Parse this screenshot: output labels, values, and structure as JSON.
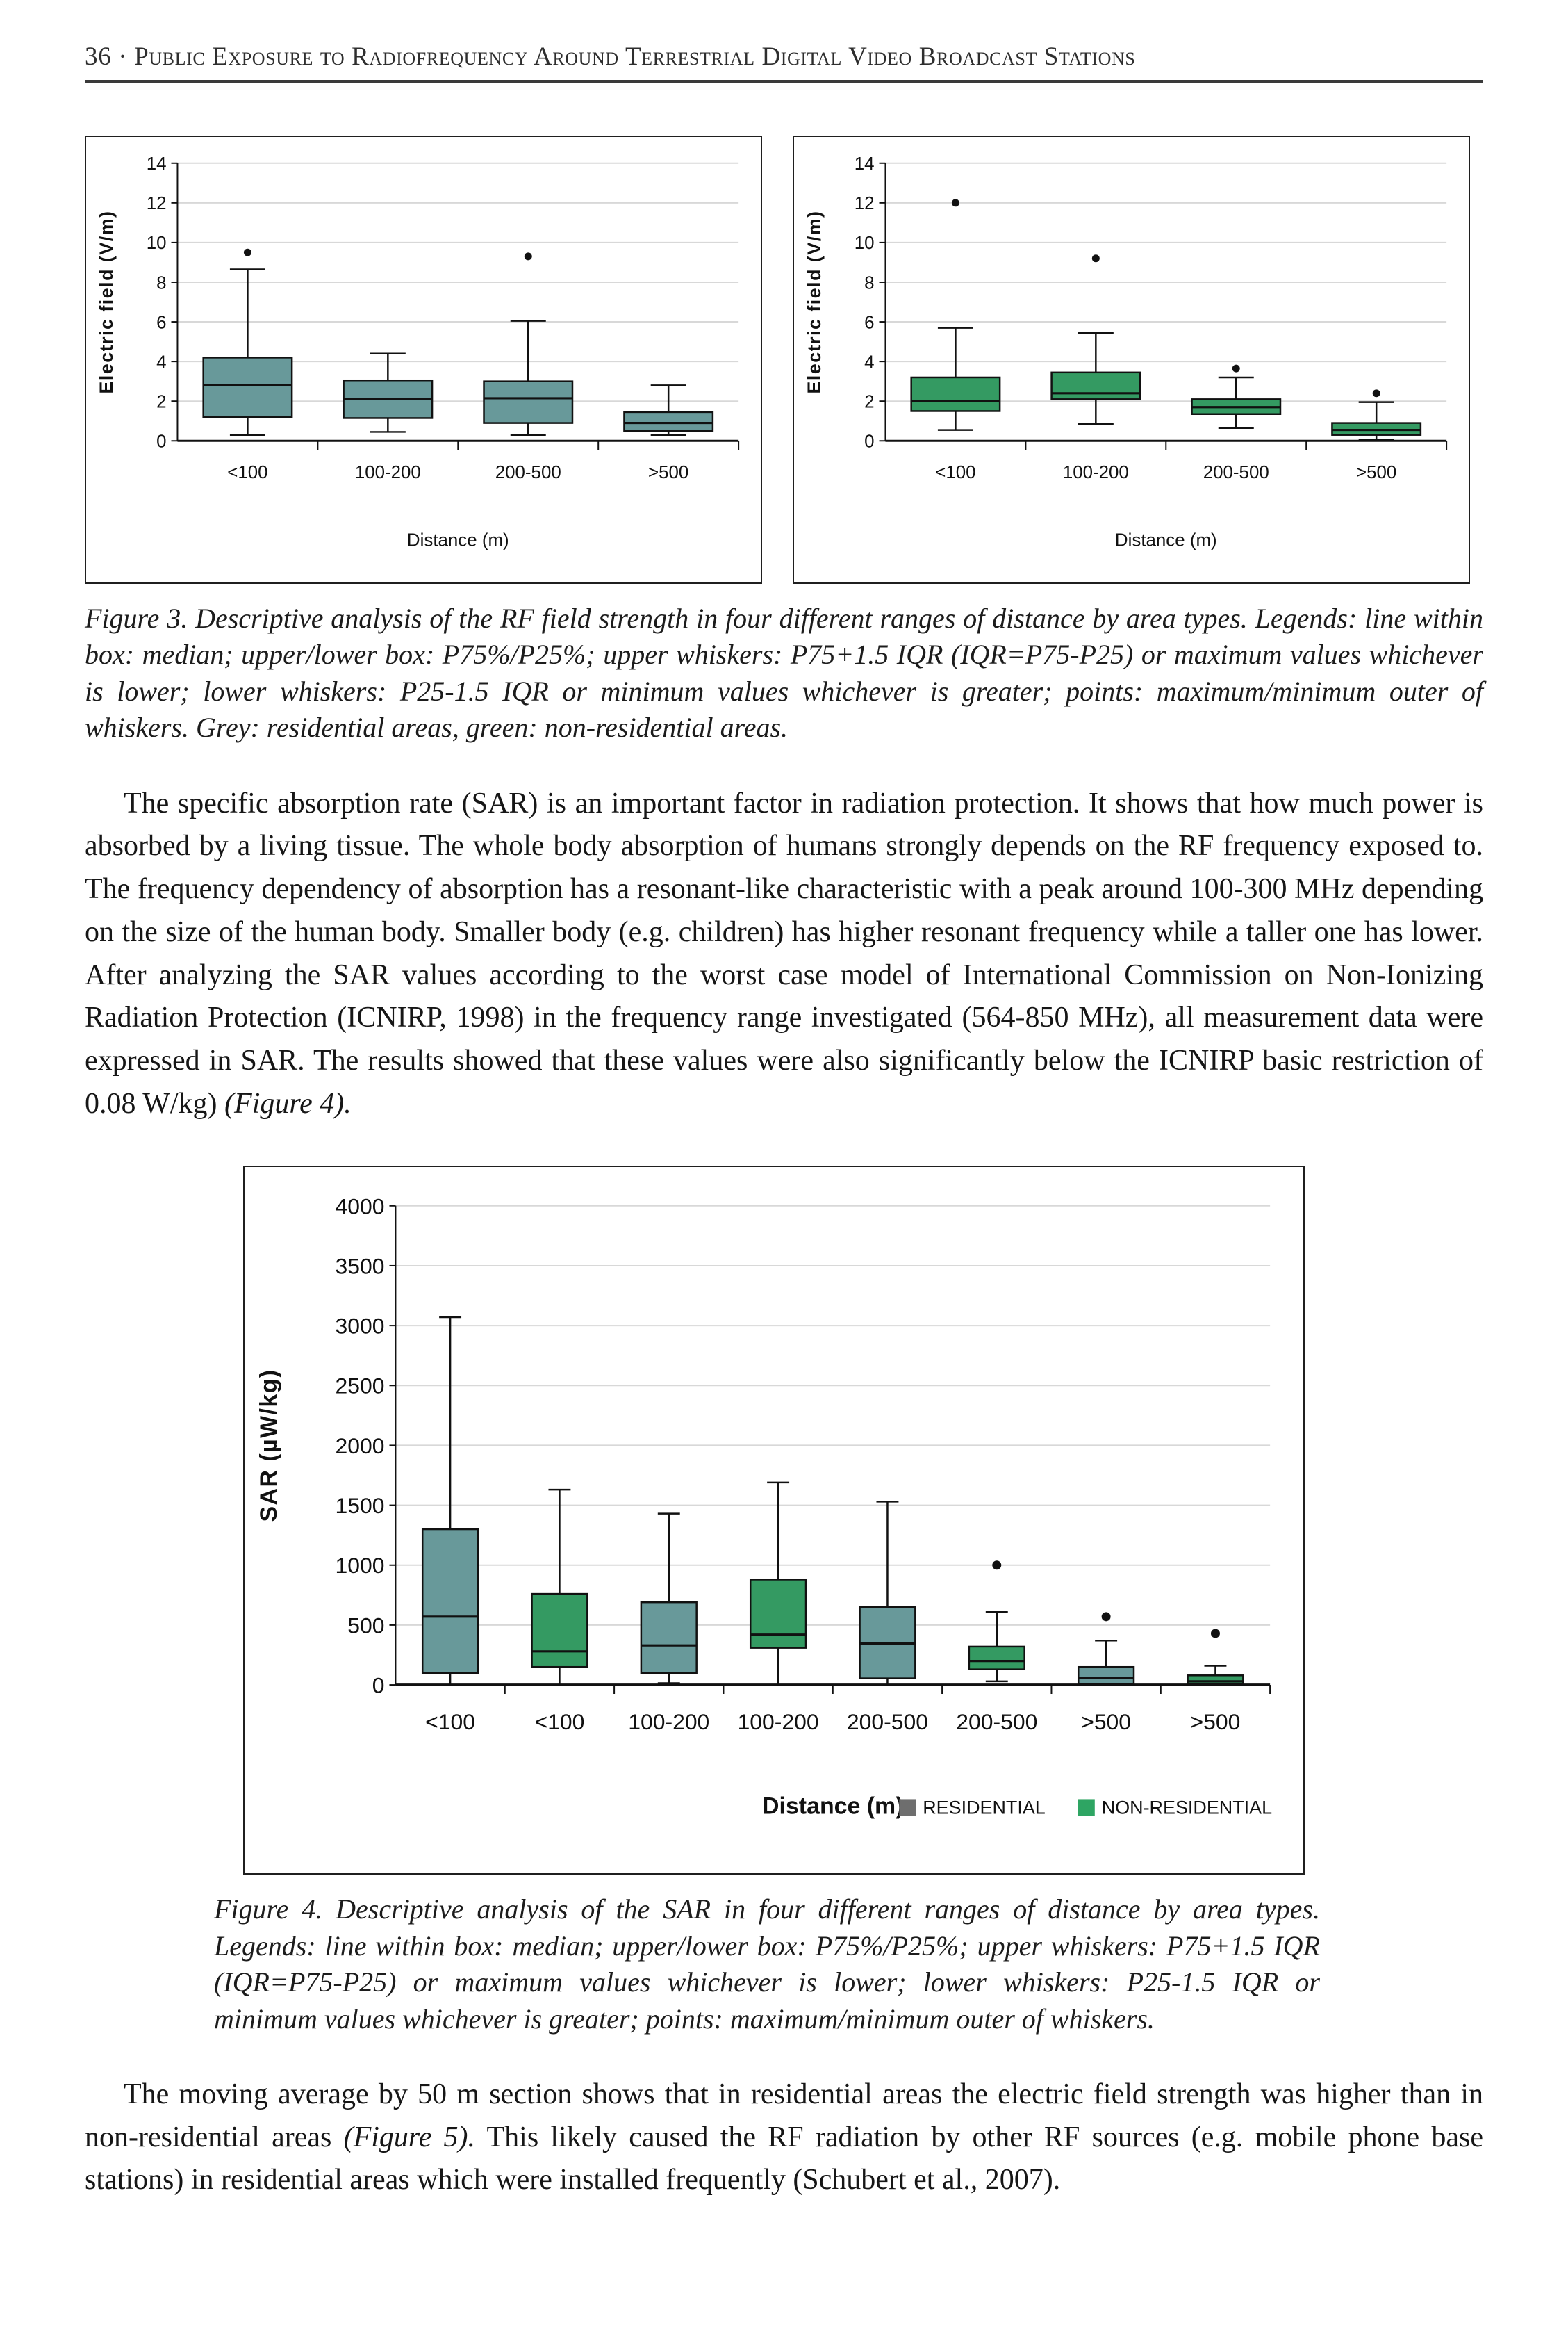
{
  "header": {
    "page_number": "36",
    "separator": "·",
    "title": "Public Exposure to Radiofrequency Around Terrestrial Digital Video Broadcast Stations"
  },
  "figure3": {
    "caption": "Figure 3. Descriptive analysis of the RF field strength in four different ranges of distance by area types. Legends: line within box: median; upper/lower box: P75%/P25%; upper whiskers: P75+1.5 IQR (IQR=P75-P25) or maximum values whichever is lower; lower whiskers: P25-1.5 IQR or minimum values whichever is greater; points: maximum/minimum outer of whiskers. Grey: residential areas, green: non-residential areas."
  },
  "figure4": {
    "caption": "Figure 4. Descriptive analysis of the SAR in four different ranges of distance by area types. Legends: line within box: median; upper/lower box: P75%/P25%; upper whiskers: P75+1.5 IQR (IQR=P75-P25) or maximum values whichever is lower; lower whiskers: P25-1.5 IQR or minimum values whichever is greater; points: maximum/minimum outer of whiskers."
  },
  "paragraphs": {
    "p1": [
      {
        "text": "The specific absorption rate (SAR) is an important factor in radiation protection. It shows that how much power is absorbed by a living tissue. The whole body absorption of humans strongly depends on the RF frequency exposed to. The frequency dependency of absorption has a resonant-like characteristic with a peak around 100-300 MHz depending on the size of the human body. Smaller body (e.g. children) has higher resonant frequency while a taller one has lower. After analyzing the SAR values according to the worst case model of International Commission on Non-Ionizing Radiation Protection (ICNIRP, 1998) in the frequency range investigated (564-850 MHz), all measurement data were expressed in SAR. The results showed that these values were also significantly below the ICNIRP basic restriction of 0.08 W/kg) ",
        "italic": false
      },
      {
        "text": "(Figure 4).",
        "italic": true
      }
    ],
    "p2": [
      {
        "text": "The moving average by 50 m section shows that in residential areas the electric field strength was higher than in non-residential areas ",
        "italic": false
      },
      {
        "text": "(Figure 5).",
        "italic": true
      },
      {
        "text": " This likely caused the RF radiation by other RF sources (e.g. mobile phone base stations) in residential areas which were installed frequently (Schubert et al., 2007).",
        "italic": false
      }
    ]
  },
  "chart_data": [
    {
      "type": "box",
      "title": "",
      "ylabel": "Electric field (V/m)",
      "xlabel": "Distance (m)",
      "ylim": [
        0,
        14
      ],
      "ytick_step": 2,
      "grid": true,
      "categories": [
        "<100",
        "100-200",
        "200-500",
        ">500"
      ],
      "series": [
        {
          "name": "RESIDENTIAL",
          "color": "#68999A"
        }
      ],
      "boxes": [
        {
          "category": "<100",
          "series": 0,
          "low": 0.3,
          "q1": 1.2,
          "median": 2.8,
          "q3": 4.2,
          "high": 8.65,
          "outliers": [
            9.5
          ]
        },
        {
          "category": "100-200",
          "series": 0,
          "low": 0.45,
          "q1": 1.15,
          "median": 2.1,
          "q3": 3.05,
          "high": 4.4,
          "outliers": []
        },
        {
          "category": "200-500",
          "series": 0,
          "low": 0.3,
          "q1": 0.9,
          "median": 2.15,
          "q3": 3.0,
          "high": 6.05,
          "outliers": [
            9.3
          ]
        },
        {
          "category": ">500",
          "series": 0,
          "low": 0.3,
          "q1": 0.5,
          "median": 0.9,
          "q3": 1.45,
          "high": 2.8,
          "outliers": []
        }
      ]
    },
    {
      "type": "box",
      "title": "",
      "ylabel": "Electric field (V/m)",
      "xlabel": "Distance (m)",
      "ylim": [
        0,
        14
      ],
      "ytick_step": 2,
      "grid": true,
      "categories": [
        "<100",
        "100-200",
        "200-500",
        ">500"
      ],
      "series": [
        {
          "name": "NON-RESIDENTIAL",
          "color": "#349A62"
        }
      ],
      "boxes": [
        {
          "category": "<100",
          "series": 0,
          "low": 0.55,
          "q1": 1.5,
          "median": 2.0,
          "q3": 3.2,
          "high": 5.7,
          "outliers": [
            12.0
          ]
        },
        {
          "category": "100-200",
          "series": 0,
          "low": 0.85,
          "q1": 2.1,
          "median": 2.4,
          "q3": 3.45,
          "high": 5.45,
          "outliers": [
            9.2
          ]
        },
        {
          "category": "200-500",
          "series": 0,
          "low": 0.65,
          "q1": 1.35,
          "median": 1.7,
          "q3": 2.1,
          "high": 3.2,
          "outliers": [
            3.65
          ]
        },
        {
          "category": ">500",
          "series": 0,
          "low": 0.05,
          "q1": 0.3,
          "median": 0.55,
          "q3": 0.9,
          "high": 1.95,
          "outliers": [
            2.4
          ]
        }
      ]
    },
    {
      "type": "box",
      "title": "",
      "ylabel": "SAR (µW/kg)",
      "xlabel": "Distance (m)",
      "ylim": [
        0,
        4000
      ],
      "ytick_step": 500,
      "grid": true,
      "categories": [
        "<100",
        "<100",
        "100-200",
        "100-200",
        "200-500",
        "200-500",
        ">500",
        ">500"
      ],
      "series": [
        {
          "name": "RESIDENTIAL",
          "color": "#68999A"
        },
        {
          "name": "NON-RESIDENTIAL",
          "color": "#349A62"
        }
      ],
      "legend": {
        "position": "bottom-right",
        "entries": [
          {
            "label": "RESIDENTIAL",
            "color": "#6E6E6E"
          },
          {
            "label": "NON-RESIDENTIAL",
            "color": "#2EA563"
          }
        ]
      },
      "boxes": [
        {
          "category": "<100",
          "series": 0,
          "low": 0,
          "q1": 100,
          "median": 570,
          "q3": 1300,
          "high": 3070,
          "outliers": []
        },
        {
          "category": "<100",
          "series": 1,
          "low": 0,
          "q1": 150,
          "median": 280,
          "q3": 760,
          "high": 1630,
          "outliers": []
        },
        {
          "category": "100-200",
          "series": 0,
          "low": 15,
          "q1": 100,
          "median": 330,
          "q3": 690,
          "high": 1430,
          "outliers": []
        },
        {
          "category": "100-200",
          "series": 1,
          "low": 0,
          "q1": 310,
          "median": 420,
          "q3": 880,
          "high": 1690,
          "outliers": []
        },
        {
          "category": "200-500",
          "series": 0,
          "low": 0,
          "q1": 55,
          "median": 345,
          "q3": 650,
          "high": 1530,
          "outliers": []
        },
        {
          "category": "200-500",
          "series": 1,
          "low": 30,
          "q1": 130,
          "median": 200,
          "q3": 320,
          "high": 610,
          "outliers": [
            1000
          ]
        },
        {
          "category": ">500",
          "series": 0,
          "low": 0,
          "q1": 10,
          "median": 60,
          "q3": 150,
          "high": 370,
          "outliers": [
            570
          ]
        },
        {
          "category": ">500",
          "series": 1,
          "low": 0,
          "q1": 5,
          "median": 30,
          "q3": 80,
          "high": 160,
          "outliers": [
            430
          ]
        }
      ]
    }
  ]
}
